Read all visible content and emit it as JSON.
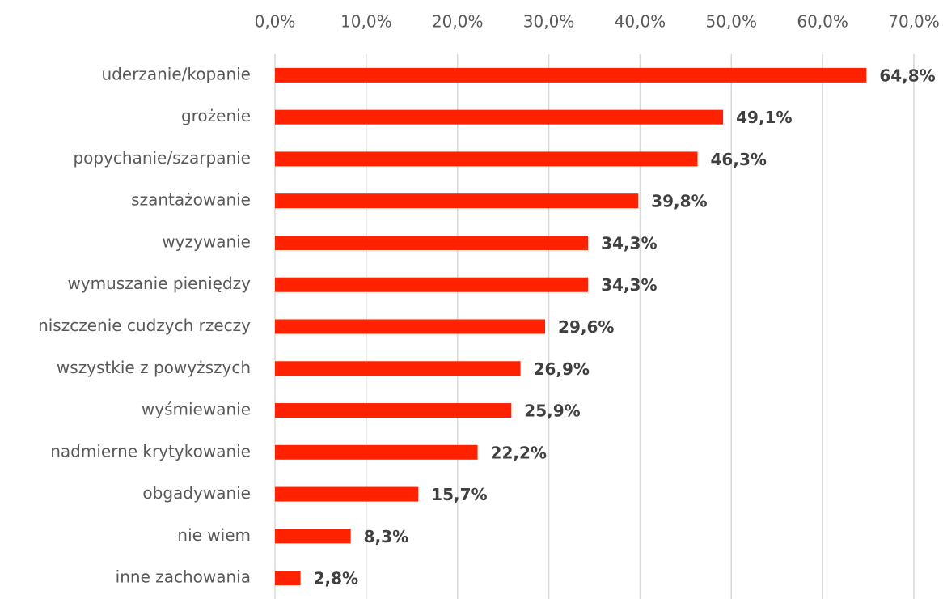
{
  "chart_data": {
    "type": "bar",
    "orientation": "horizontal",
    "categories": [
      "uderzanie/kopanie",
      "grożenie",
      "popychanie/szarpanie",
      "szantażowanie",
      "wyzywanie",
      "wymuszanie pieniędzy",
      "niszczenie cudzych rzeczy",
      "wszystkie z powyższych",
      "wyśmiewanie",
      "nadmierne krytykowanie",
      "obgadywanie",
      "nie wiem",
      "inne zachowania"
    ],
    "values": [
      64.8,
      49.1,
      46.3,
      39.8,
      34.3,
      34.3,
      29.6,
      26.9,
      25.9,
      22.2,
      15.7,
      8.3,
      2.8
    ],
    "value_labels": [
      "64,8%",
      "49,1%",
      "46,3%",
      "39,8%",
      "34,3%",
      "34,3%",
      "29,6%",
      "26,9%",
      "25,9%",
      "22,2%",
      "15,7%",
      "8,3%",
      "2,8%"
    ],
    "color": "#ff2200",
    "xlim": [
      0,
      70
    ],
    "xticks": [
      {
        "value": 0,
        "label": "0,0%"
      },
      {
        "value": 10,
        "label": "10,0%"
      },
      {
        "value": 20,
        "label": "20,0%"
      },
      {
        "value": 30,
        "label": "30,0%"
      },
      {
        "value": 40,
        "label": "40,0%"
      },
      {
        "value": 50,
        "label": "50,0%"
      },
      {
        "value": 60,
        "label": "60,0%"
      },
      {
        "value": 70,
        "label": "70,0%"
      }
    ],
    "grid": true
  }
}
